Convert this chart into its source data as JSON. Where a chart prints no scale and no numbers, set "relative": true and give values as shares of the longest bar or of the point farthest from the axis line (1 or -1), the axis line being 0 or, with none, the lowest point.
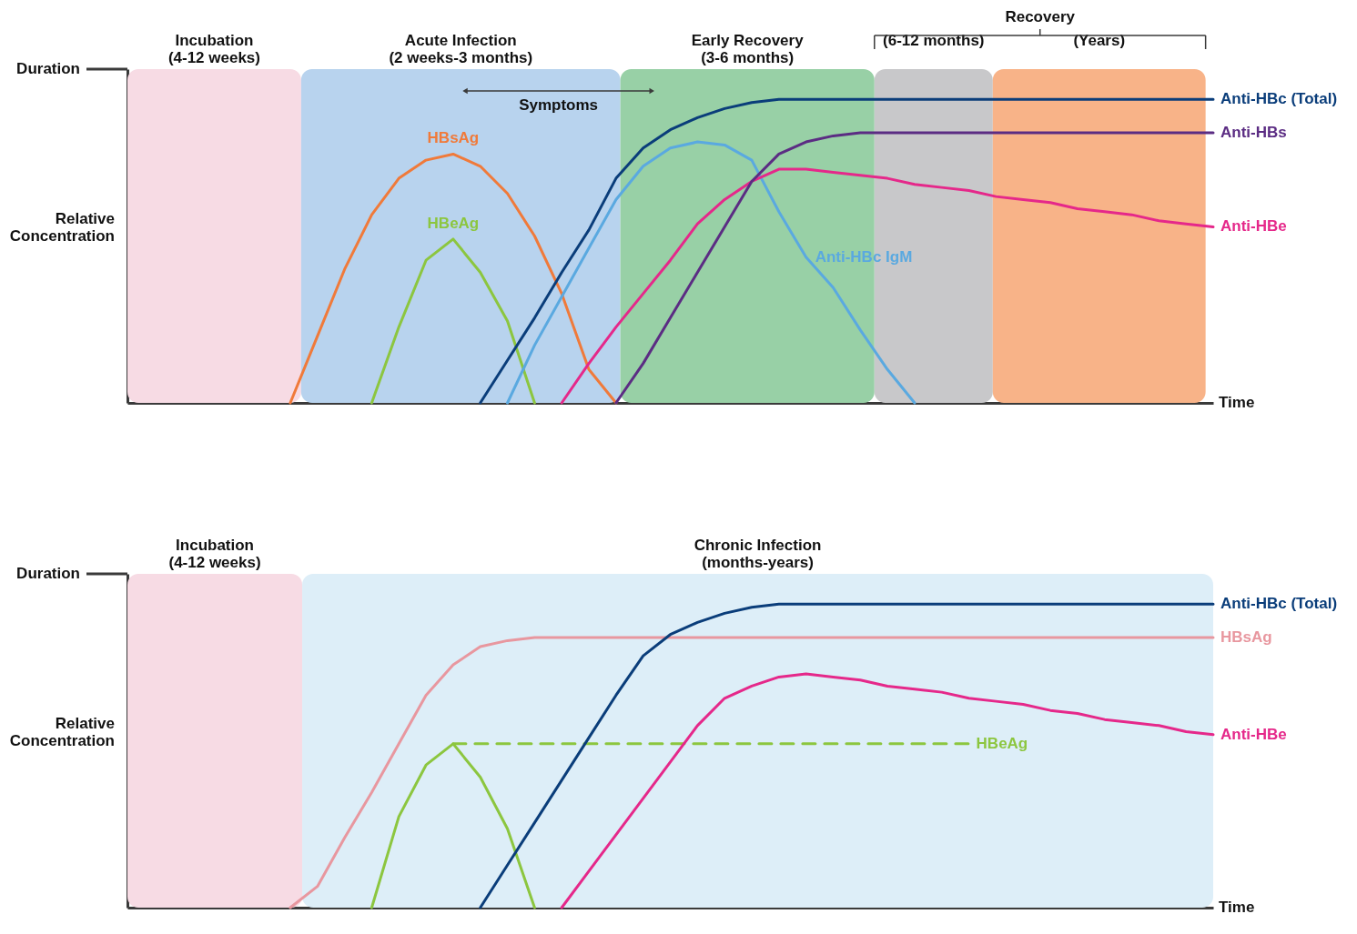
{
  "chart_data": [
    {
      "type": "line",
      "relative": true,
      "xlabel": "Time",
      "ylabel": "Relative\nConcentration",
      "categories": [
        null,
        null,
        null,
        null,
        null,
        null,
        null,
        null,
        null,
        null,
        null,
        null,
        null,
        null,
        null,
        null,
        null,
        null,
        null,
        null,
        null,
        null,
        null,
        null,
        null,
        null,
        null,
        null,
        null,
        null,
        null,
        null,
        null,
        null,
        null,
        null,
        null,
        null,
        null,
        null,
        null
      ],
      "series": [
        {
          "name": "HBsAg",
          "color": "#f07a3a",
          "values": [
            null,
            null,
            null,
            null,
            null,
            null,
            0,
            0.22,
            0.44,
            0.62,
            0.74,
            0.8,
            0.82,
            0.78,
            0.69,
            0.55,
            0.36,
            0.11,
            0,
            null,
            null,
            null,
            null,
            null,
            null,
            null,
            null,
            null,
            null,
            null,
            null,
            null,
            null,
            null,
            null,
            null,
            null,
            null,
            null,
            null,
            null
          ]
        },
        {
          "name": "HBeAg",
          "color": "#8cc63f",
          "values": [
            null,
            null,
            null,
            null,
            null,
            null,
            null,
            null,
            null,
            0,
            0.25,
            0.47,
            0.54,
            0.43,
            0.27,
            0,
            null,
            null,
            null,
            null,
            null,
            null,
            null,
            null,
            null,
            null,
            null,
            null,
            null,
            null,
            null,
            null,
            null,
            null,
            null,
            null,
            null,
            null,
            null,
            null,
            null
          ]
        },
        {
          "name": "Anti-HBc IgM",
          "color": "#5aa9e0",
          "values": [
            null,
            null,
            null,
            null,
            null,
            null,
            null,
            null,
            null,
            null,
            null,
            null,
            null,
            null,
            0,
            0.19,
            0.35,
            0.51,
            0.67,
            0.78,
            0.84,
            0.86,
            0.85,
            0.8,
            0.63,
            0.48,
            0.38,
            0.24,
            0.11,
            0,
            null,
            null,
            null,
            null,
            null,
            null,
            null,
            null,
            null,
            null,
            null
          ]
        },
        {
          "name": "Anti-HBe",
          "color": "#e5288a",
          "values": [
            null,
            null,
            null,
            null,
            null,
            null,
            null,
            null,
            null,
            null,
            null,
            null,
            null,
            null,
            null,
            null,
            0,
            0.13,
            0.25,
            0.36,
            0.47,
            0.59,
            0.67,
            0.73,
            0.77,
            0.77,
            0.76,
            0.75,
            0.74,
            0.72,
            0.71,
            0.7,
            0.68,
            0.67,
            0.66,
            0.64,
            0.63,
            0.62,
            0.6,
            0.59,
            0.58
          ]
        },
        {
          "name": "Anti-HBs",
          "color": "#5b2c83",
          "values": [
            null,
            null,
            null,
            null,
            null,
            null,
            null,
            null,
            null,
            null,
            null,
            null,
            null,
            null,
            null,
            null,
            null,
            null,
            0,
            0.13,
            0.28,
            0.43,
            0.58,
            0.73,
            0.82,
            0.86,
            0.88,
            0.89,
            0.89,
            0.89,
            0.89,
            0.89,
            0.89,
            0.89,
            0.89,
            0.89,
            0.89,
            0.89,
            0.89,
            0.89,
            0.89
          ]
        },
        {
          "name": "Anti-HBc (Total)",
          "color": "#0a3d7a",
          "values": [
            null,
            null,
            null,
            null,
            null,
            null,
            null,
            null,
            null,
            null,
            null,
            null,
            null,
            0,
            0.14,
            0.28,
            0.43,
            0.57,
            0.74,
            0.84,
            0.9,
            0.94,
            0.97,
            0.99,
            1,
            1,
            1,
            1,
            1,
            1,
            1,
            1,
            1,
            1,
            1,
            1,
            1,
            1,
            1,
            1,
            1
          ]
        }
      ],
      "annotations": [
        "Duration",
        "Incubation\n(4-12 weeks)",
        "Acute Infection\n(2 weeks-3 months)",
        "Early Recovery\n(3-6 months)",
        "(6-12 months)",
        "(Years)",
        "Recovery",
        "Symptoms"
      ]
    },
    {
      "type": "line",
      "relative": true,
      "xlabel": "Time",
      "ylabel": "Relative\nConcentration",
      "categories": [
        null,
        null,
        null,
        null,
        null,
        null,
        null,
        null,
        null,
        null,
        null,
        null,
        null,
        null,
        null,
        null,
        null,
        null,
        null,
        null,
        null,
        null,
        null,
        null,
        null,
        null,
        null,
        null,
        null,
        null,
        null,
        null,
        null,
        null,
        null,
        null,
        null,
        null,
        null,
        null,
        null
      ],
      "series": [
        {
          "color": "#8cc63f",
          "values": [
            null,
            null,
            null,
            null,
            null,
            null,
            null,
            null,
            null,
            0,
            0.3,
            0.47,
            0.54,
            0.43,
            0.26,
            0,
            null,
            null,
            null,
            null,
            null,
            null,
            null,
            null,
            null,
            null,
            null,
            null,
            null,
            null,
            null,
            null,
            null,
            null,
            null,
            null,
            null,
            null,
            null,
            null,
            null
          ]
        },
        {
          "name": "HBeAg",
          "color": "#8cc63f",
          "line_style": "dashed",
          "values": [
            null,
            null,
            null,
            null,
            null,
            null,
            null,
            null,
            null,
            null,
            null,
            null,
            0.54,
            0.54,
            0.54,
            0.54,
            0.54,
            0.54,
            0.54,
            0.54,
            0.54,
            0.54,
            0.54,
            0.54,
            0.54,
            0.54,
            0.54,
            0.54,
            0.54,
            0.54,
            0.54,
            0.54,
            null,
            null,
            null,
            null,
            null,
            null,
            null,
            null,
            null
          ]
        },
        {
          "name": "Anti-HBe",
          "color": "#e5288a",
          "values": [
            null,
            null,
            null,
            null,
            null,
            null,
            null,
            null,
            null,
            null,
            null,
            null,
            null,
            null,
            null,
            null,
            0,
            0.12,
            0.24,
            0.36,
            0.48,
            0.6,
            0.69,
            0.73,
            0.76,
            0.77,
            0.76,
            0.75,
            0.73,
            0.72,
            0.71,
            0.69,
            0.68,
            0.67,
            0.65,
            0.64,
            0.62,
            0.61,
            0.6,
            0.58,
            0.57
          ]
        },
        {
          "name": "HBsAg",
          "color": "#e8979f",
          "values": [
            null,
            null,
            null,
            null,
            null,
            null,
            0,
            0.07,
            0.23,
            0.38,
            0.54,
            0.7,
            0.8,
            0.86,
            0.88,
            0.89,
            0.89,
            0.89,
            0.89,
            0.89,
            0.89,
            0.89,
            0.89,
            0.89,
            0.89,
            0.89,
            0.89,
            0.89,
            0.89,
            0.89,
            0.89,
            0.89,
            0.89,
            0.89,
            0.89,
            0.89,
            0.89,
            0.89,
            0.89,
            0.89,
            0.89
          ]
        },
        {
          "name": "Anti-HBc (Total)",
          "color": "#0a3d7a",
          "values": [
            null,
            null,
            null,
            null,
            null,
            null,
            null,
            null,
            null,
            null,
            null,
            null,
            null,
            0,
            0.14,
            0.28,
            0.42,
            0.56,
            0.7,
            0.83,
            0.9,
            0.94,
            0.97,
            0.99,
            1,
            1,
            1,
            1,
            1,
            1,
            1,
            1,
            1,
            1,
            1,
            1,
            1,
            1,
            1,
            1,
            1
          ]
        }
      ],
      "annotations": [
        "Duration",
        "Incubation\n(4-12 weeks)",
        "Chronic Infection\n(months-years)"
      ]
    }
  ]
}
